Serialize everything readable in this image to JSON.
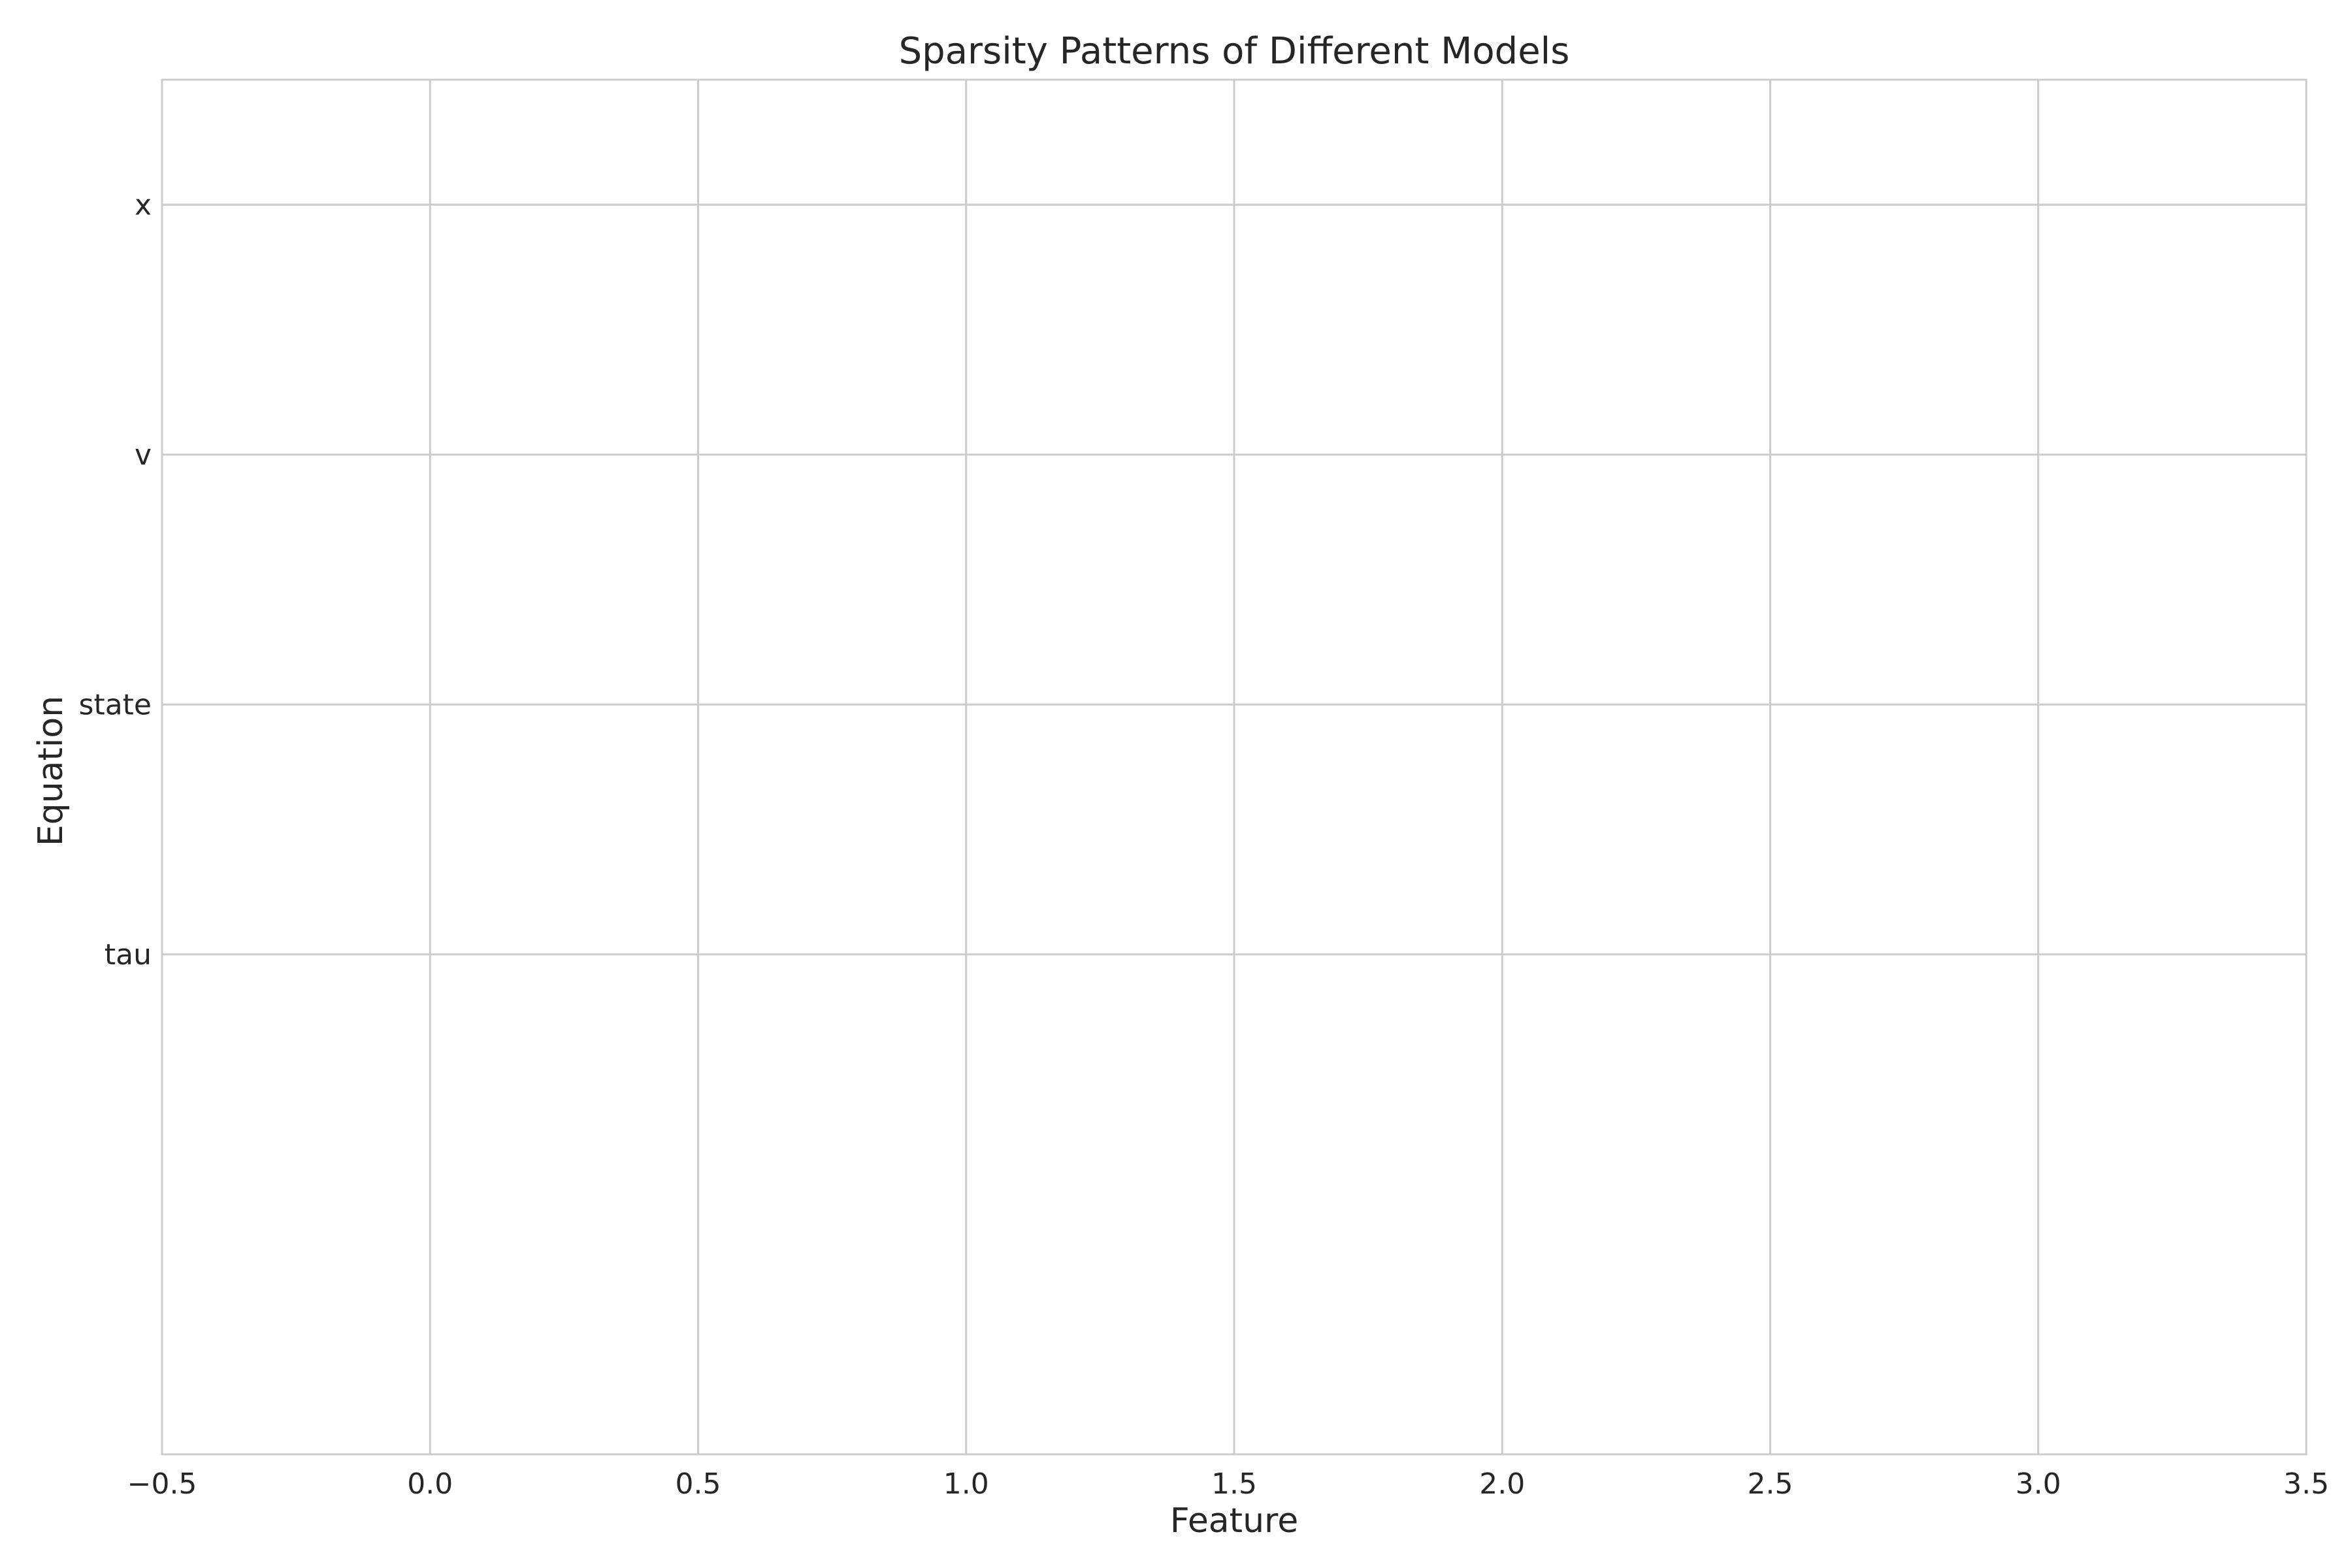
{
  "chart_data": {
    "type": "heatmap",
    "title": "Sparsity Patterns of Different Models",
    "xlabel": "Feature",
    "ylabel": "Equation",
    "xlim": [
      -0.5,
      3.5
    ],
    "x_ticks": [
      -0.5,
      0.0,
      0.5,
      1.0,
      1.5,
      2.0,
      2.5,
      3.0,
      3.5
    ],
    "x_tick_labels": [
      "−0.5",
      "0.0",
      "0.5",
      "1.0",
      "1.5",
      "2.0",
      "2.5",
      "3.0",
      "3.5"
    ],
    "y_categories": [
      "x",
      "v",
      "state",
      "tau"
    ],
    "grid": true,
    "values": [],
    "colors": {
      "grid": "#cccccc",
      "spine": "#cccccc",
      "text": "#262626",
      "background": "#ffffff"
    }
  }
}
